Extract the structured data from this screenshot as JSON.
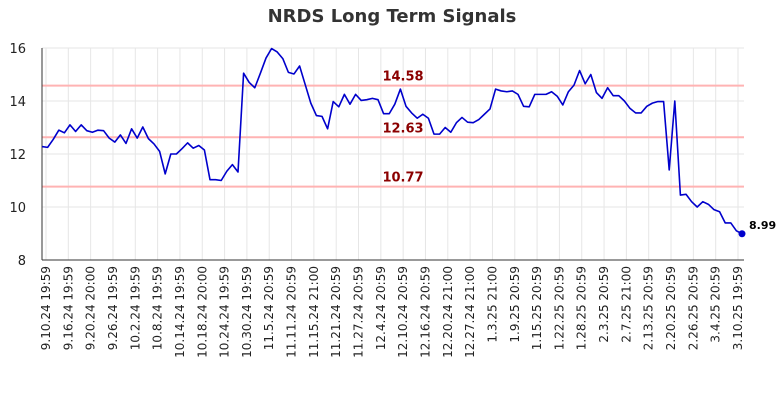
{
  "chart_data": {
    "type": "line",
    "title": "NRDS Long Term Signals",
    "xlabel": "",
    "ylabel": "",
    "ylim": [
      8,
      16
    ],
    "yticks": [
      8,
      10,
      12,
      14,
      16
    ],
    "grid": true,
    "line_color": "#0000cc",
    "reference_color": "#ffb3b3",
    "reference_label_color": "#8b0000",
    "reference_lines": [
      {
        "label": "14.58",
        "value": 14.58
      },
      {
        "label": "12.63",
        "value": 12.63
      },
      {
        "label": "10.77",
        "value": 10.77
      }
    ],
    "x_tick_labels": [
      "9.10.24 19:59",
      "9.16.24 19:59",
      "9.20.24 20:00",
      "9.26.24 19:59",
      "10.2.24 19:59",
      "10.8.24 19:59",
      "10.14.24 19:59",
      "10.18.24 20:00",
      "10.24.24 19:59",
      "10.30.24 19:59",
      "11.5.24 20:59",
      "11.11.24 20:59",
      "11.15.24 21:00",
      "11.21.24 20:59",
      "11.27.24 20:59",
      "12.4.24 20:59",
      "12.10.24 20:59",
      "12.16.24 20:59",
      "12.20.24 21:00",
      "12.27.24 21:00",
      "1.3.25 21:00",
      "1.9.25 20:59",
      "1.15.25 20:59",
      "1.22.25 20:59",
      "1.28.25 20:59",
      "2.3.25 20:59",
      "2.7.25 21:00",
      "2.13.25 20:59",
      "2.20.25 20:59",
      "2.26.25 20:59",
      "3.4.25 20:59",
      "3.10.25 19:59"
    ],
    "values": [
      12.28,
      12.25,
      12.55,
      12.9,
      12.8,
      13.1,
      12.85,
      13.1,
      12.88,
      12.82,
      12.9,
      12.88,
      12.6,
      12.45,
      12.72,
      12.4,
      12.95,
      12.6,
      13.02,
      12.58,
      12.38,
      12.1,
      11.25,
      12.0,
      12.0,
      12.2,
      12.42,
      12.22,
      12.32,
      12.15,
      11.03,
      11.03,
      11.0,
      11.35,
      11.6,
      11.32,
      15.05,
      14.7,
      14.5,
      15.05,
      15.62,
      15.98,
      15.85,
      15.6,
      15.08,
      15.02,
      15.32,
      14.62,
      13.92,
      13.45,
      13.42,
      12.95,
      13.98,
      13.78,
      14.25,
      13.88,
      14.25,
      14.02,
      14.05,
      14.1,
      14.05,
      13.52,
      13.52,
      13.88,
      14.45,
      13.8,
      13.55,
      13.35,
      13.5,
      13.35,
      12.75,
      12.75,
      13.0,
      12.82,
      13.18,
      13.38,
      13.2,
      13.18,
      13.3,
      13.5,
      13.7,
      14.45,
      14.38,
      14.35,
      14.38,
      14.25,
      13.8,
      13.78,
      14.25,
      14.25,
      14.25,
      14.35,
      14.18,
      13.85,
      14.35,
      14.6,
      15.15,
      14.65,
      15.0,
      14.32,
      14.1,
      14.5,
      14.2,
      14.2,
      14.0,
      13.72,
      13.55,
      13.55,
      13.8,
      13.92,
      13.98,
      13.98,
      11.4,
      14.0,
      10.45,
      10.48,
      10.2,
      10.0,
      10.2,
      10.1,
      9.9,
      9.82,
      9.4,
      9.4,
      9.1,
      8.99
    ],
    "last_label": "8.99"
  }
}
